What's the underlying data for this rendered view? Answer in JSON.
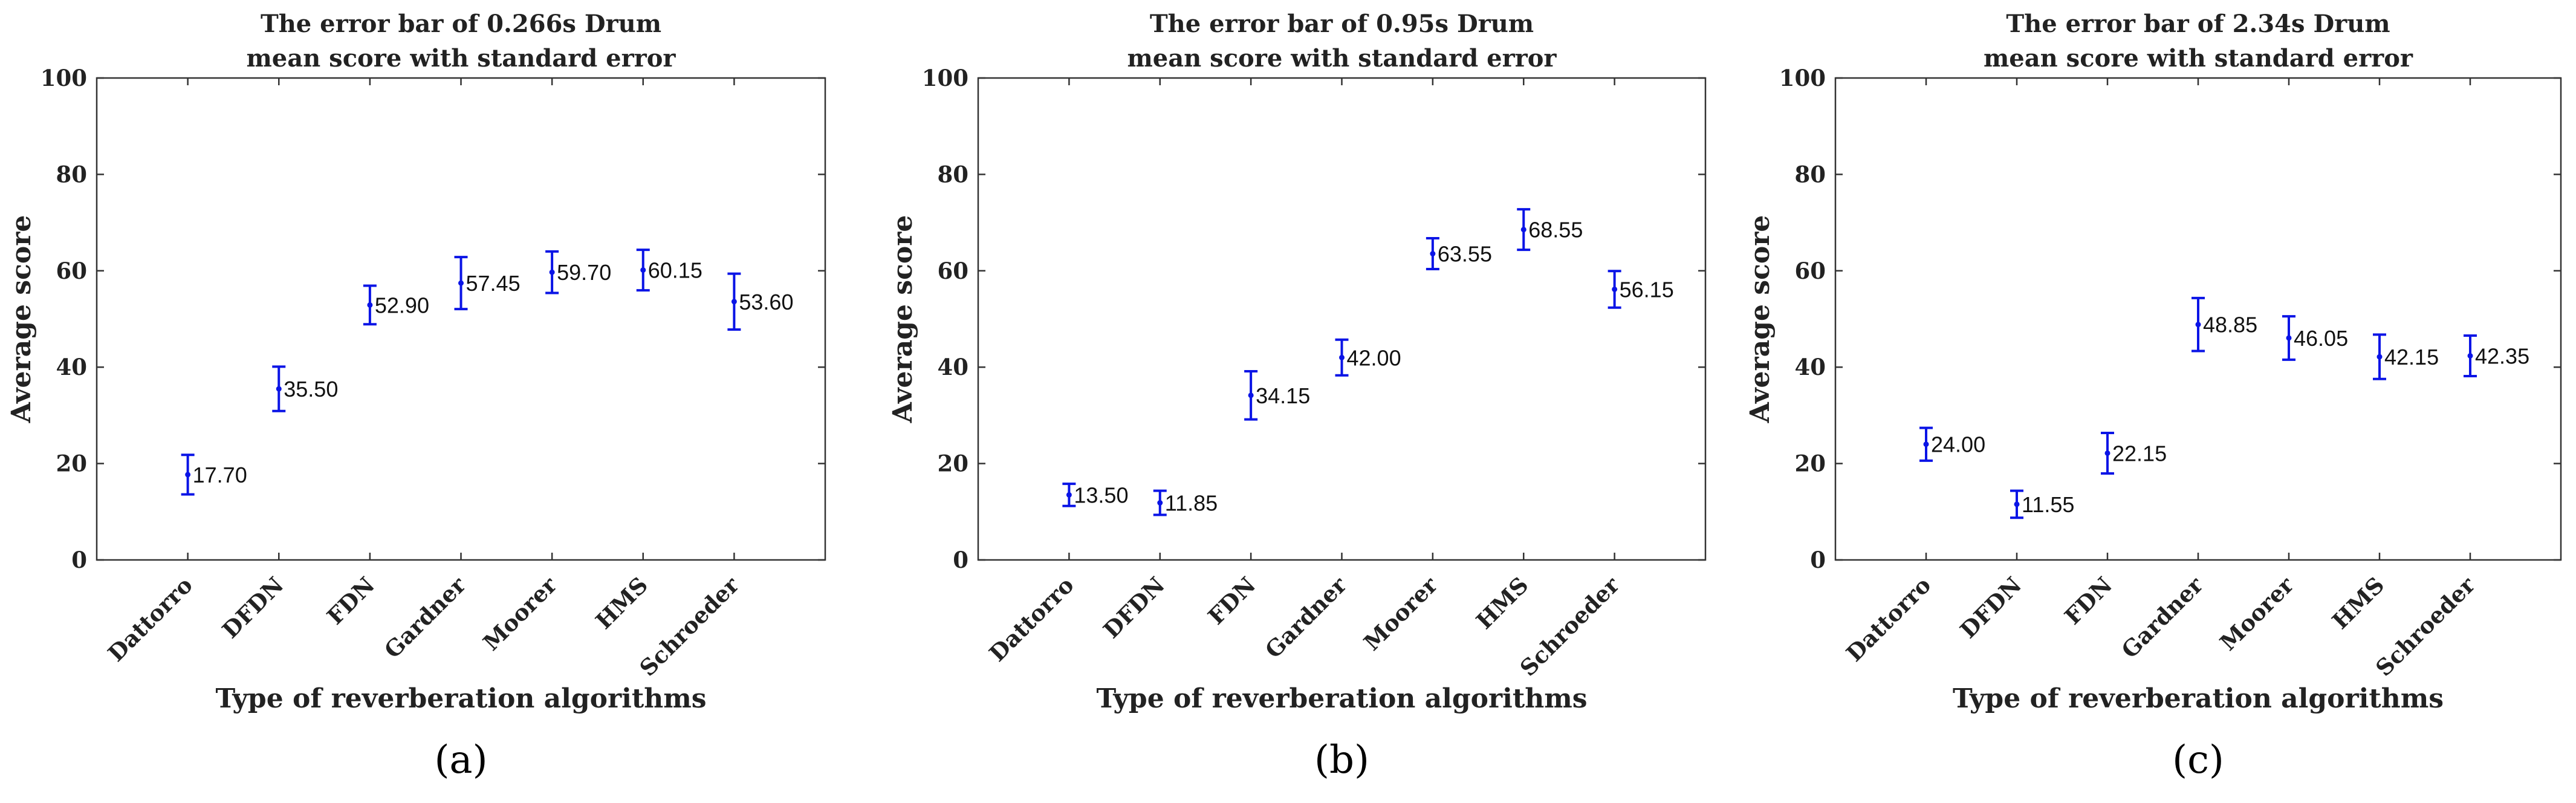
{
  "chart_data": [
    {
      "type": "errorbar",
      "panel_label": "(a)",
      "title_line1": "The error bar of 0.266s Drum",
      "title_line2": "mean score with standard error",
      "xlabel": "Type of reverberation algorithms",
      "ylabel": "Average score",
      "ylim": [
        0,
        100
      ],
      "yticks": [
        "0",
        "20",
        "40",
        "60",
        "80",
        "100"
      ],
      "categories": [
        "Dattorro",
        "DFDN",
        "FDN",
        "Gardner",
        "Moorer",
        "HMS",
        "Schroeder"
      ],
      "values": [
        17.7,
        35.5,
        52.9,
        57.45,
        59.7,
        60.15,
        53.6
      ],
      "value_labels": [
        "17.70",
        "35.50",
        "52.90",
        "57.45",
        "59.70",
        "60.15",
        "53.60"
      ],
      "errors": [
        4.1,
        4.6,
        4.0,
        5.4,
        4.3,
        4.2,
        5.8
      ]
    },
    {
      "type": "errorbar",
      "panel_label": "(b)",
      "title_line1": "The error bar of 0.95s Drum",
      "title_line2": "mean score with standard error",
      "xlabel": "Type of reverberation algorithms",
      "ylabel": "Average score",
      "ylim": [
        0,
        100
      ],
      "yticks": [
        "0",
        "20",
        "40",
        "60",
        "80",
        "100"
      ],
      "categories": [
        "Dattorro",
        "DFDN",
        "FDN",
        "Gardner",
        "Moorer",
        "HMS",
        "Schroeder"
      ],
      "values": [
        13.5,
        11.85,
        34.15,
        42.0,
        63.55,
        68.55,
        56.15
      ],
      "value_labels": [
        "13.50",
        "11.85",
        "34.15",
        "42.00",
        "63.55",
        "68.55",
        "56.15"
      ],
      "errors": [
        2.3,
        2.5,
        5.0,
        3.7,
        3.2,
        4.2,
        3.8
      ]
    },
    {
      "type": "errorbar",
      "panel_label": "(c)",
      "title_line1": "The error bar of 2.34s Drum",
      "title_line2": "mean score with standard error",
      "xlabel": "Type of reverberation algorithms",
      "ylabel": "Average score",
      "ylim": [
        0,
        100
      ],
      "yticks": [
        "0",
        "20",
        "40",
        "60",
        "80",
        "100"
      ],
      "categories": [
        "Dattorro",
        "DFDN",
        "FDN",
        "Gardner",
        "Moorer",
        "HMS",
        "Schroeder"
      ],
      "values": [
        24.0,
        11.55,
        22.15,
        48.85,
        46.05,
        42.15,
        42.35
      ],
      "value_labels": [
        "24.00",
        "11.55",
        "22.15",
        "48.85",
        "46.05",
        "42.15",
        "42.35"
      ],
      "errors": [
        3.4,
        2.8,
        4.2,
        5.5,
        4.5,
        4.6,
        4.2
      ]
    }
  ],
  "colors": {
    "marker": "#0a14e6",
    "axis": "#333333",
    "text": "#222222"
  }
}
